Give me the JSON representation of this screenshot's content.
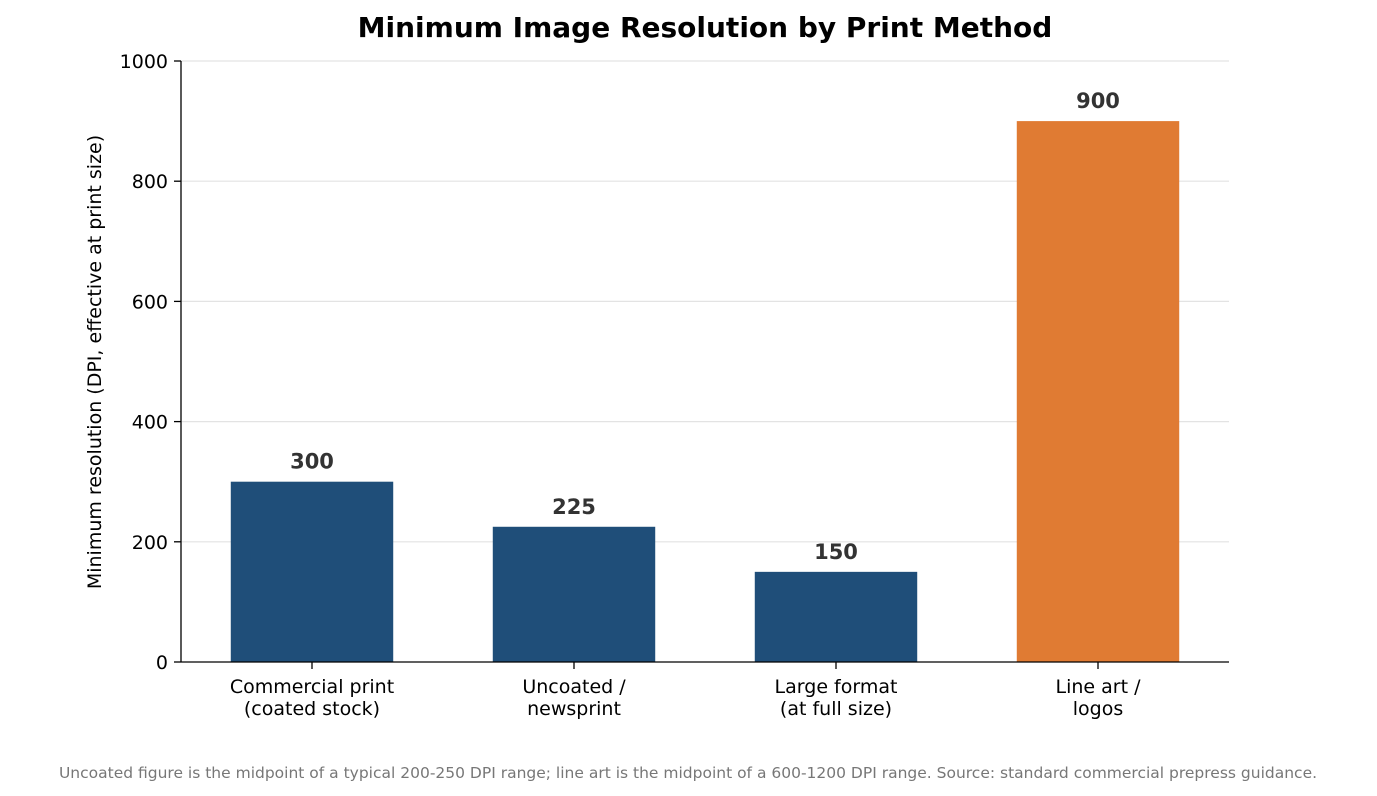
{
  "chart_data": {
    "type": "bar",
    "title": "Minimum Image Resolution by Print Method",
    "xlabel": "",
    "ylabel": "Minimum resolution (DPI, effective at print size)",
    "categories": [
      [
        "Commercial print",
        "(coated stock)"
      ],
      [
        "Uncoated /",
        "newsprint"
      ],
      [
        "Large format",
        "(at full size)"
      ],
      [
        "Line art /",
        "logos"
      ]
    ],
    "values": [
      300,
      225,
      150,
      900
    ],
    "value_labels": [
      "300",
      "225",
      "150",
      "900"
    ],
    "colors": [
      "#1f4e79",
      "#1f4e79",
      "#1f4e79",
      "#e07b33"
    ],
    "ylim": [
      0,
      1000
    ],
    "yticks": [
      0,
      200,
      400,
      600,
      800,
      1000
    ],
    "ytick_labels": [
      "0",
      "200",
      "400",
      "600",
      "800",
      "1000"
    ],
    "grid": "horizontal",
    "legend": "none",
    "footnote": "Uncoated figure is the midpoint of a typical 200-250 DPI range; line art is the midpoint of a 600-1200 DPI range. Source: standard commercial prepress guidance."
  }
}
